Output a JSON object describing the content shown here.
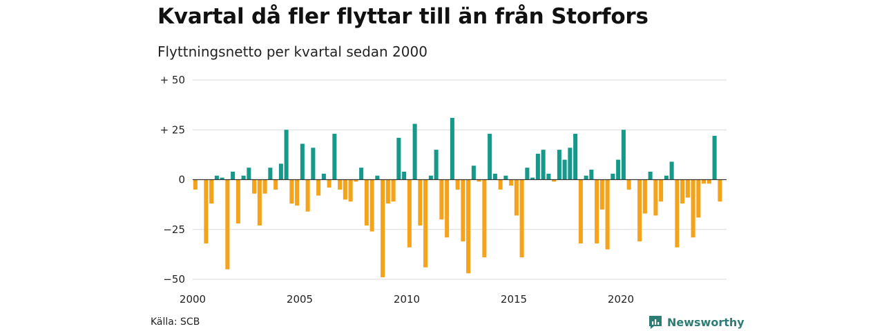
{
  "title": "Kvartal då fler flyttar till än från Storfors",
  "subtitle": "Flyttningsnetto per kvartal sedan 2000",
  "source": "Källa: SCB",
  "brand": "Newsworthy",
  "colors": {
    "positive": "#16998a",
    "negative": "#f5a31a",
    "grid": "#d9d9d9",
    "zero_line": "#333333",
    "brand": "#2e7d74"
  },
  "chart_data": {
    "type": "bar",
    "title": "Kvartal då fler flyttar till än från Storfors",
    "subtitle": "Flyttningsnetto per kvartal sedan 2000",
    "start": "2000 Q1",
    "x_ticks": [
      2000,
      2005,
      2010,
      2015,
      2020
    ],
    "y_ticks": [
      {
        "value": 50,
        "label": "+ 50"
      },
      {
        "value": 25,
        "label": "+ 25"
      },
      {
        "value": 0,
        "label": "0"
      },
      {
        "value": -25,
        "label": "−25"
      },
      {
        "value": -50,
        "label": "−50"
      }
    ],
    "ylim": [
      -50,
      50
    ],
    "grid": true,
    "values": [
      -5,
      0,
      -32,
      -12,
      2,
      1,
      -45,
      4,
      -22,
      2,
      6,
      -7,
      -23,
      -7,
      6,
      -5,
      8,
      25,
      -12,
      -13,
      18,
      -16,
      16,
      -8,
      3,
      -4,
      23,
      -5,
      -10,
      -11,
      -1,
      6,
      -23,
      -26,
      2,
      -49,
      -12,
      -11,
      21,
      4,
      -34,
      28,
      -23,
      -44,
      2,
      15,
      -20,
      -29,
      31,
      -5,
      -31,
      -47,
      7,
      -1,
      -39,
      23,
      3,
      -5,
      2,
      -3,
      -18,
      -39,
      6,
      1,
      13,
      15,
      3,
      -1,
      15,
      10,
      16,
      23,
      -32,
      2,
      5,
      -32,
      -15,
      -35,
      3,
      10,
      25,
      -5,
      0,
      -31,
      -17,
      4,
      -18,
      -11,
      2,
      9,
      -34,
      -12,
      -9,
      -29,
      -19,
      -2,
      -2,
      22,
      -11
    ]
  }
}
